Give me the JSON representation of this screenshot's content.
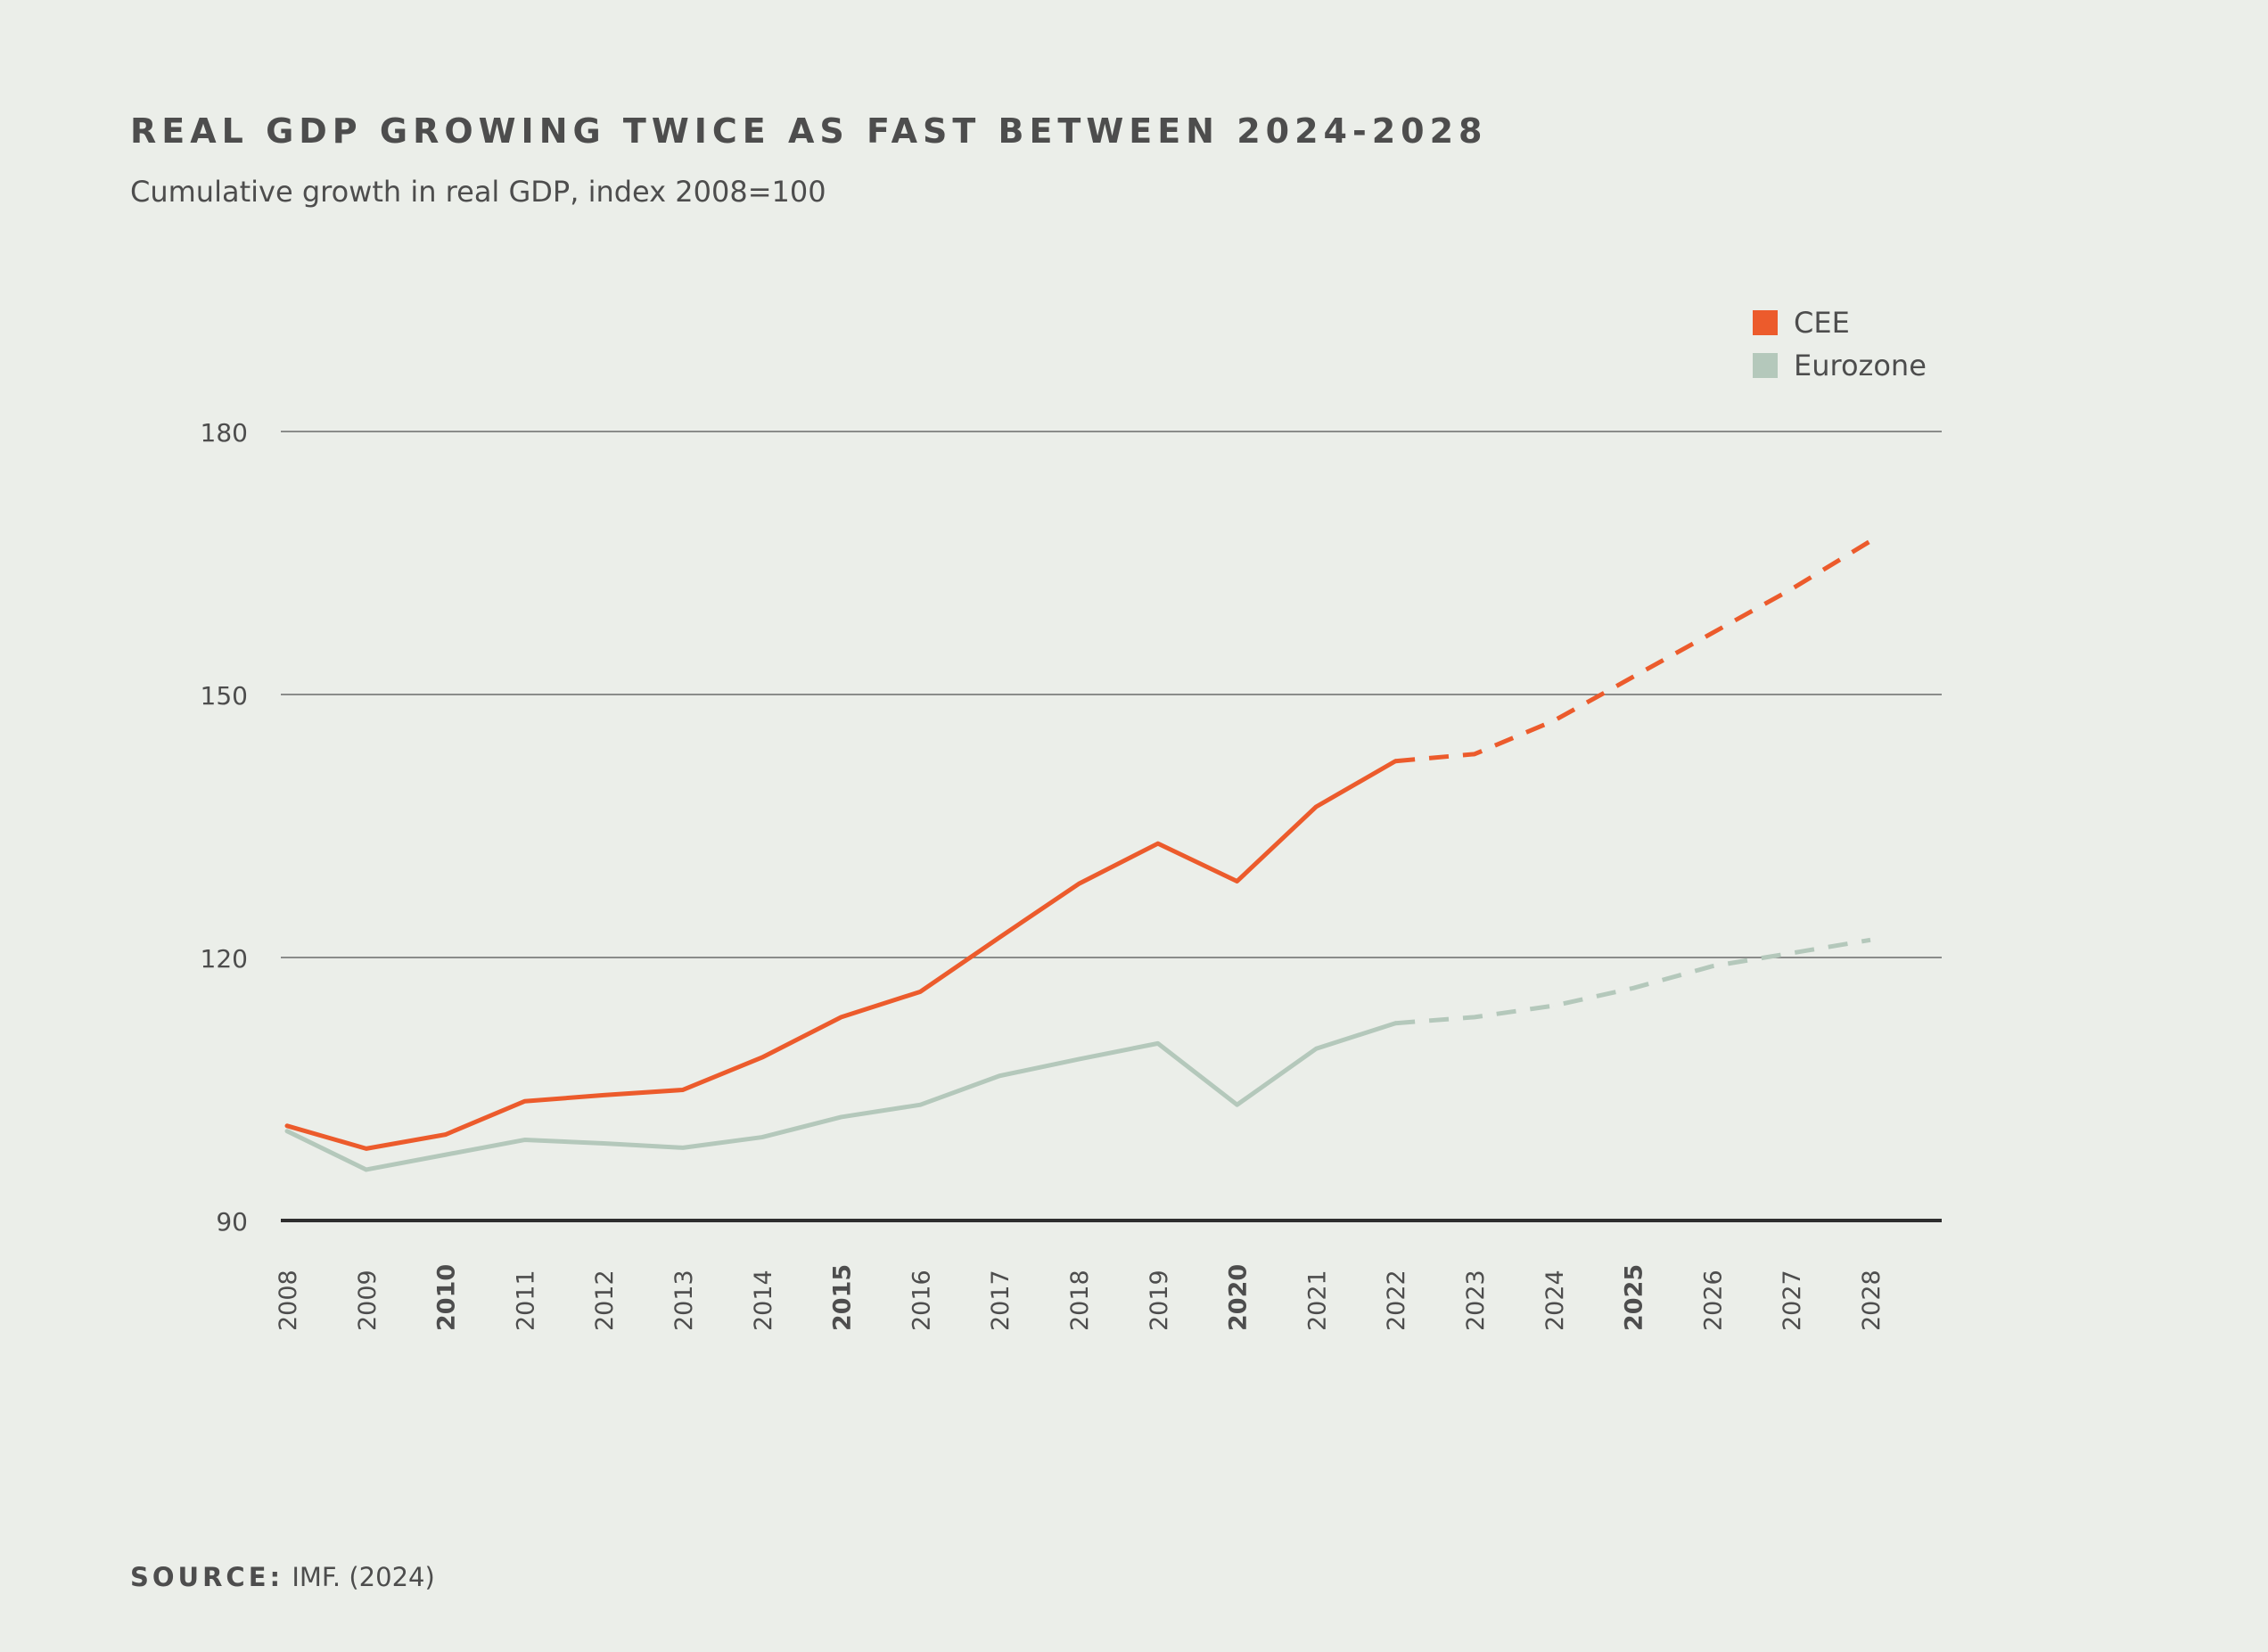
{
  "header": {
    "title": "REAL GDP GROWING TWICE AS FAST BETWEEN 2024-2028",
    "subtitle": "Cumulative growth in real GDP, index 2008=100"
  },
  "source": {
    "label": "SOURCE:",
    "text": "IMF. (2024)"
  },
  "colors": {
    "cee": "#ec5b2c",
    "eurozone": "#b4c8bb",
    "gridline": "#6b6b6b",
    "baseline": "#2e2e2e",
    "tick_text": "#4d4d4d"
  },
  "chart_data": {
    "type": "line",
    "x": [
      "2008",
      "2009",
      "2010",
      "2011",
      "2012",
      "2013",
      "2014",
      "2015",
      "2016",
      "2017",
      "2018",
      "2019",
      "2020",
      "2021",
      "2022",
      "2023",
      "2024",
      "2025",
      "2026",
      "2027",
      "2028"
    ],
    "bold_ticks": [
      "2010",
      "2015",
      "2020",
      "2025"
    ],
    "y_ticks": [
      90,
      120,
      150,
      180
    ],
    "ylim": [
      90,
      180
    ],
    "grid": true,
    "legend_position": "top-right",
    "forecast_start": "2022",
    "series": [
      {
        "name": "CEE",
        "color": "#ec5b2c",
        "values": [
          100.8,
          98.2,
          99.8,
          103.6,
          104.3,
          104.9,
          108.6,
          113.2,
          116.1,
          122.3,
          128.4,
          133.0,
          128.7,
          137.2,
          142.4,
          143.2,
          147.0,
          152.0,
          157.0,
          162.0,
          167.5
        ]
      },
      {
        "name": "Eurozone",
        "color": "#b4c8bb",
        "values": [
          100.2,
          95.8,
          97.5,
          99.2,
          98.8,
          98.3,
          99.5,
          101.8,
          103.2,
          106.5,
          108.4,
          110.2,
          103.2,
          109.6,
          112.5,
          113.2,
          114.5,
          116.5,
          119.0,
          120.5,
          122.0
        ]
      }
    ]
  }
}
